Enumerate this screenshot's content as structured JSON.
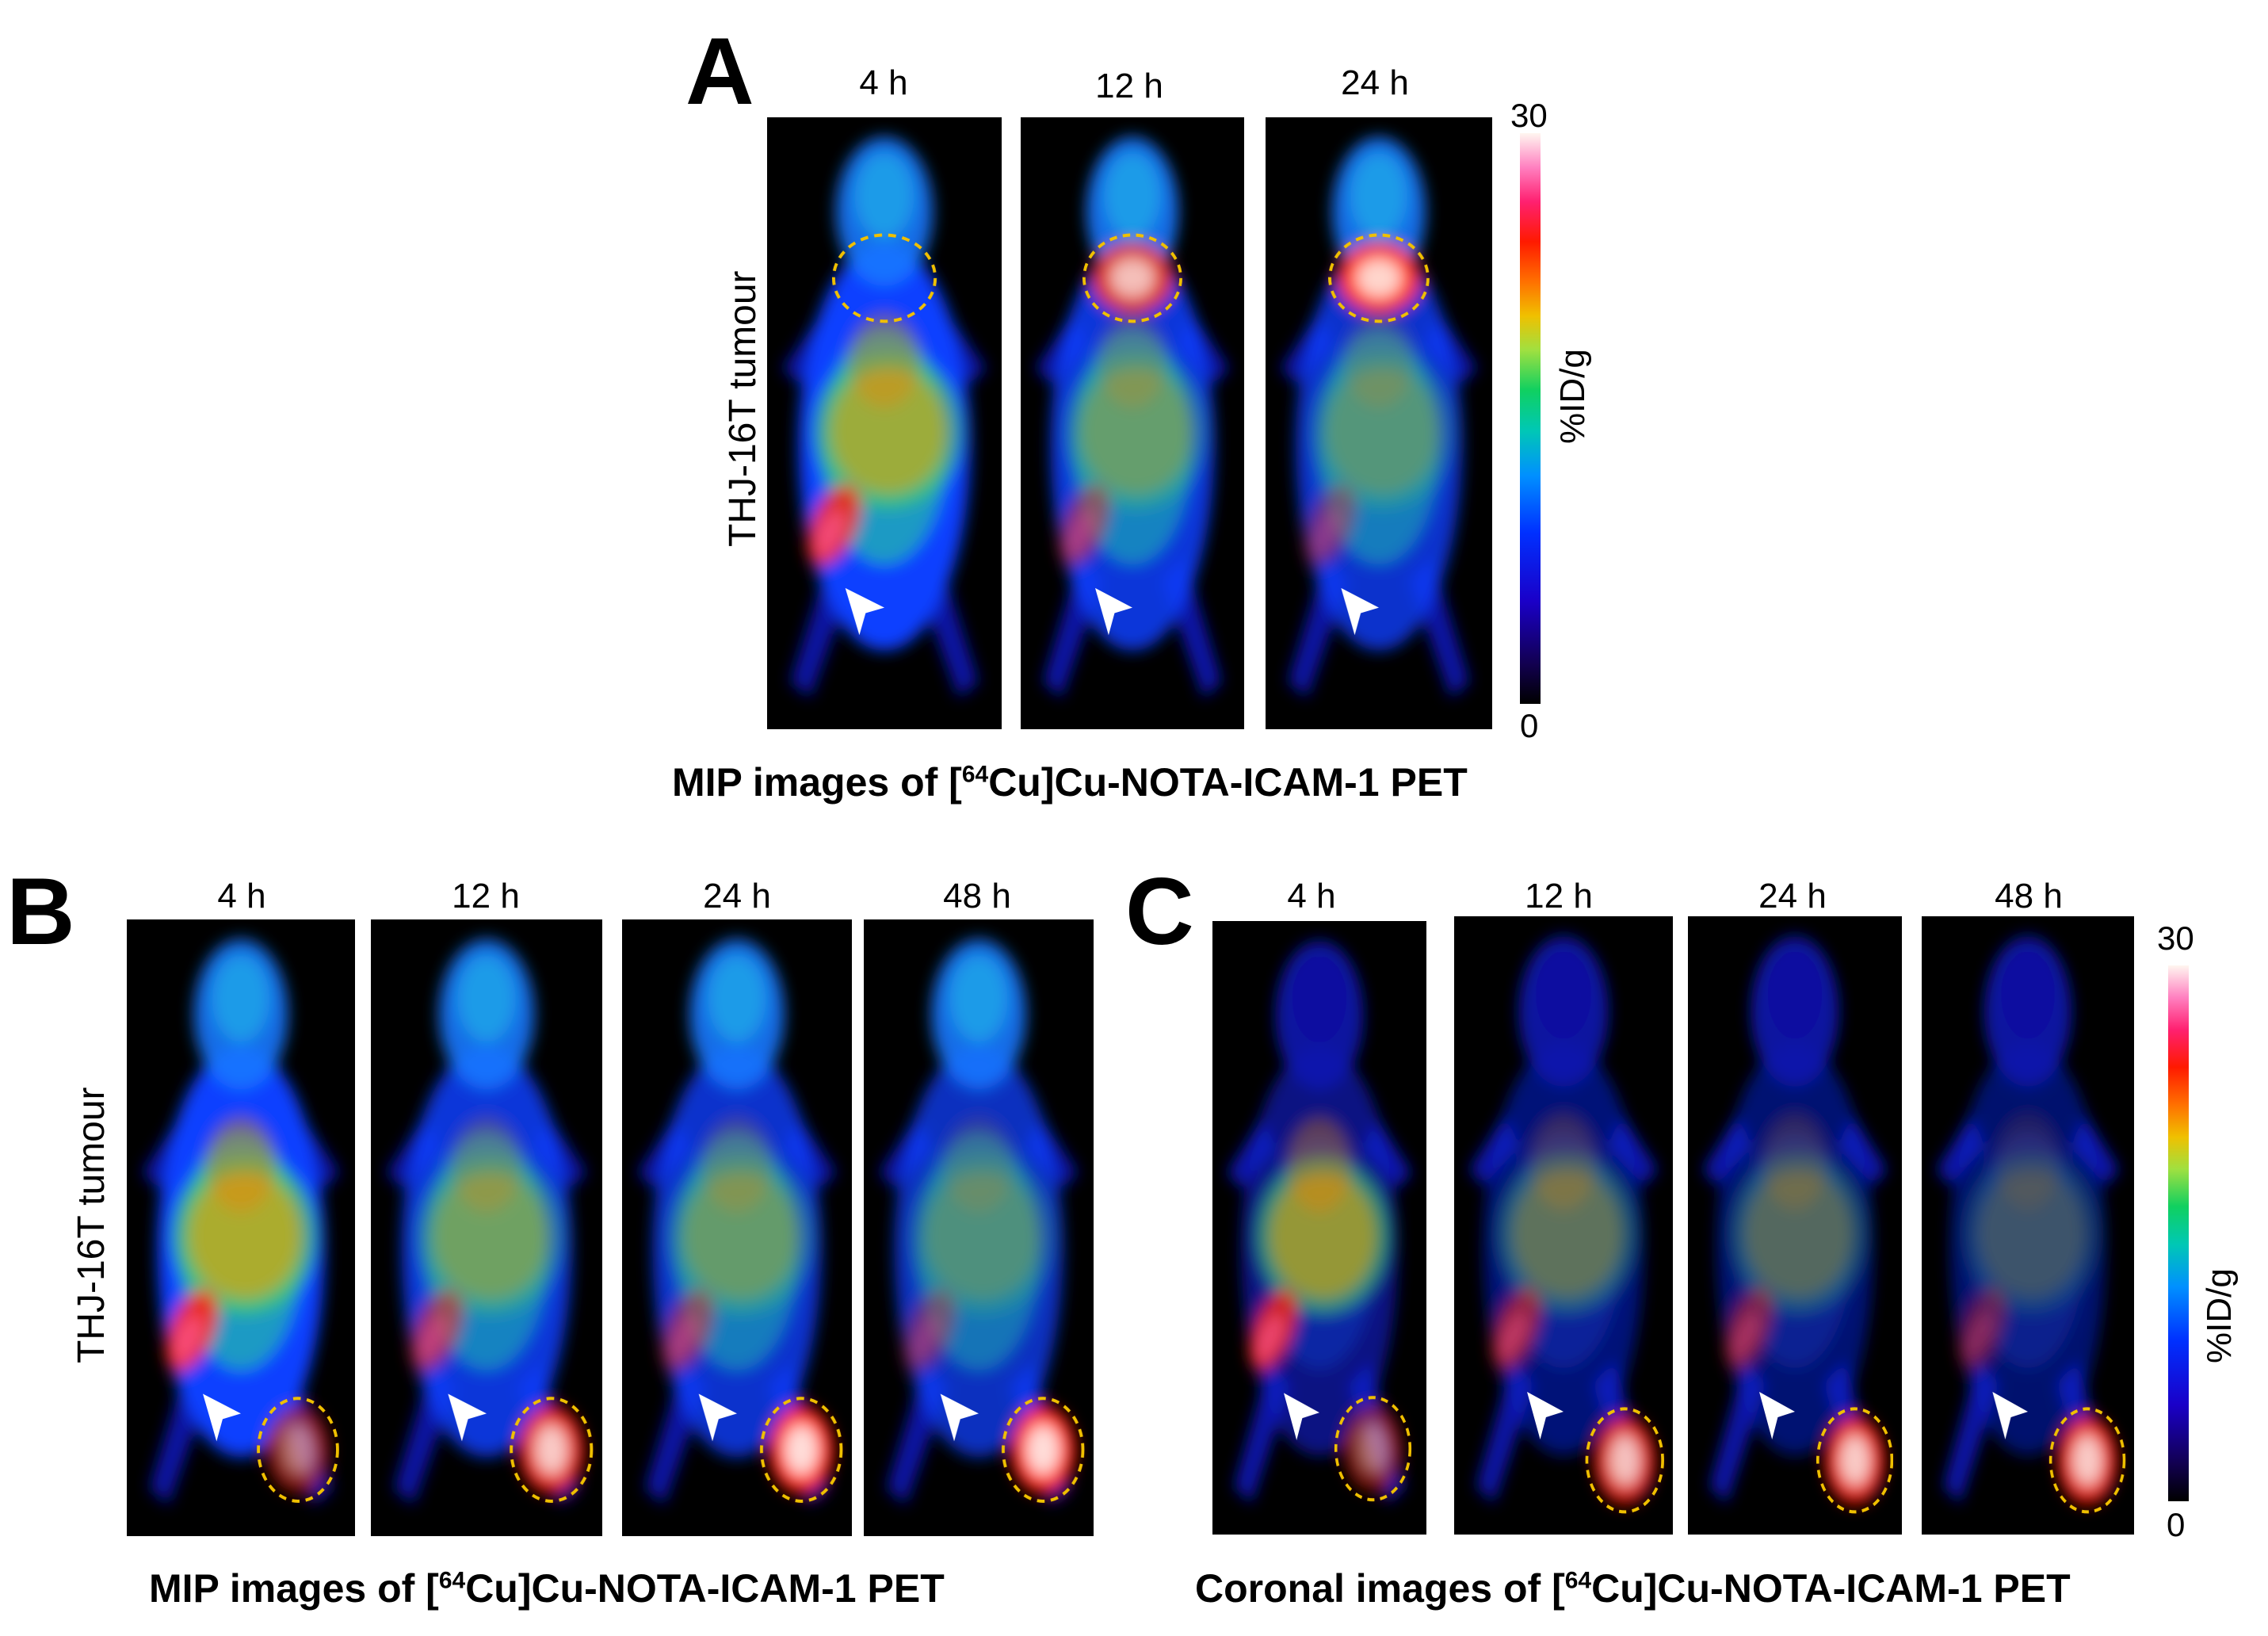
{
  "panel_A": {
    "letter": "A",
    "times": [
      "4 h",
      "12 h",
      "24 h"
    ],
    "ylabel": "THJ-16T tumour",
    "caption_pre": "MIP images of [",
    "caption_sup": "64",
    "caption_post": "Cu]Cu-NOTA-ICAM-1 PET",
    "scale_max": "30",
    "scale_min": "0",
    "scale_unit": "%ID/g"
  },
  "panel_B": {
    "letter": "B",
    "times": [
      "4 h",
      "12 h",
      "24 h",
      "48 h"
    ],
    "ylabel": "THJ-16T tumour",
    "caption_pre": "MIP images of [",
    "caption_sup": "64",
    "caption_post": "Cu]Cu-NOTA-ICAM-1 PET"
  },
  "panel_C": {
    "letter": "C",
    "times": [
      "4 h",
      "12 h",
      "24 h",
      "48 h"
    ],
    "caption_pre": "Coronal images of [",
    "caption_sup": "64",
    "caption_post": "Cu]Cu-NOTA-ICAM-1 PET",
    "scale_max": "30",
    "scale_min": "0",
    "scale_unit": "%ID/g"
  },
  "colors": {
    "background": "#ffffff",
    "image_bg": "#000000",
    "tumour_outline": "#f0c000",
    "arrowhead": "#ffffff"
  }
}
